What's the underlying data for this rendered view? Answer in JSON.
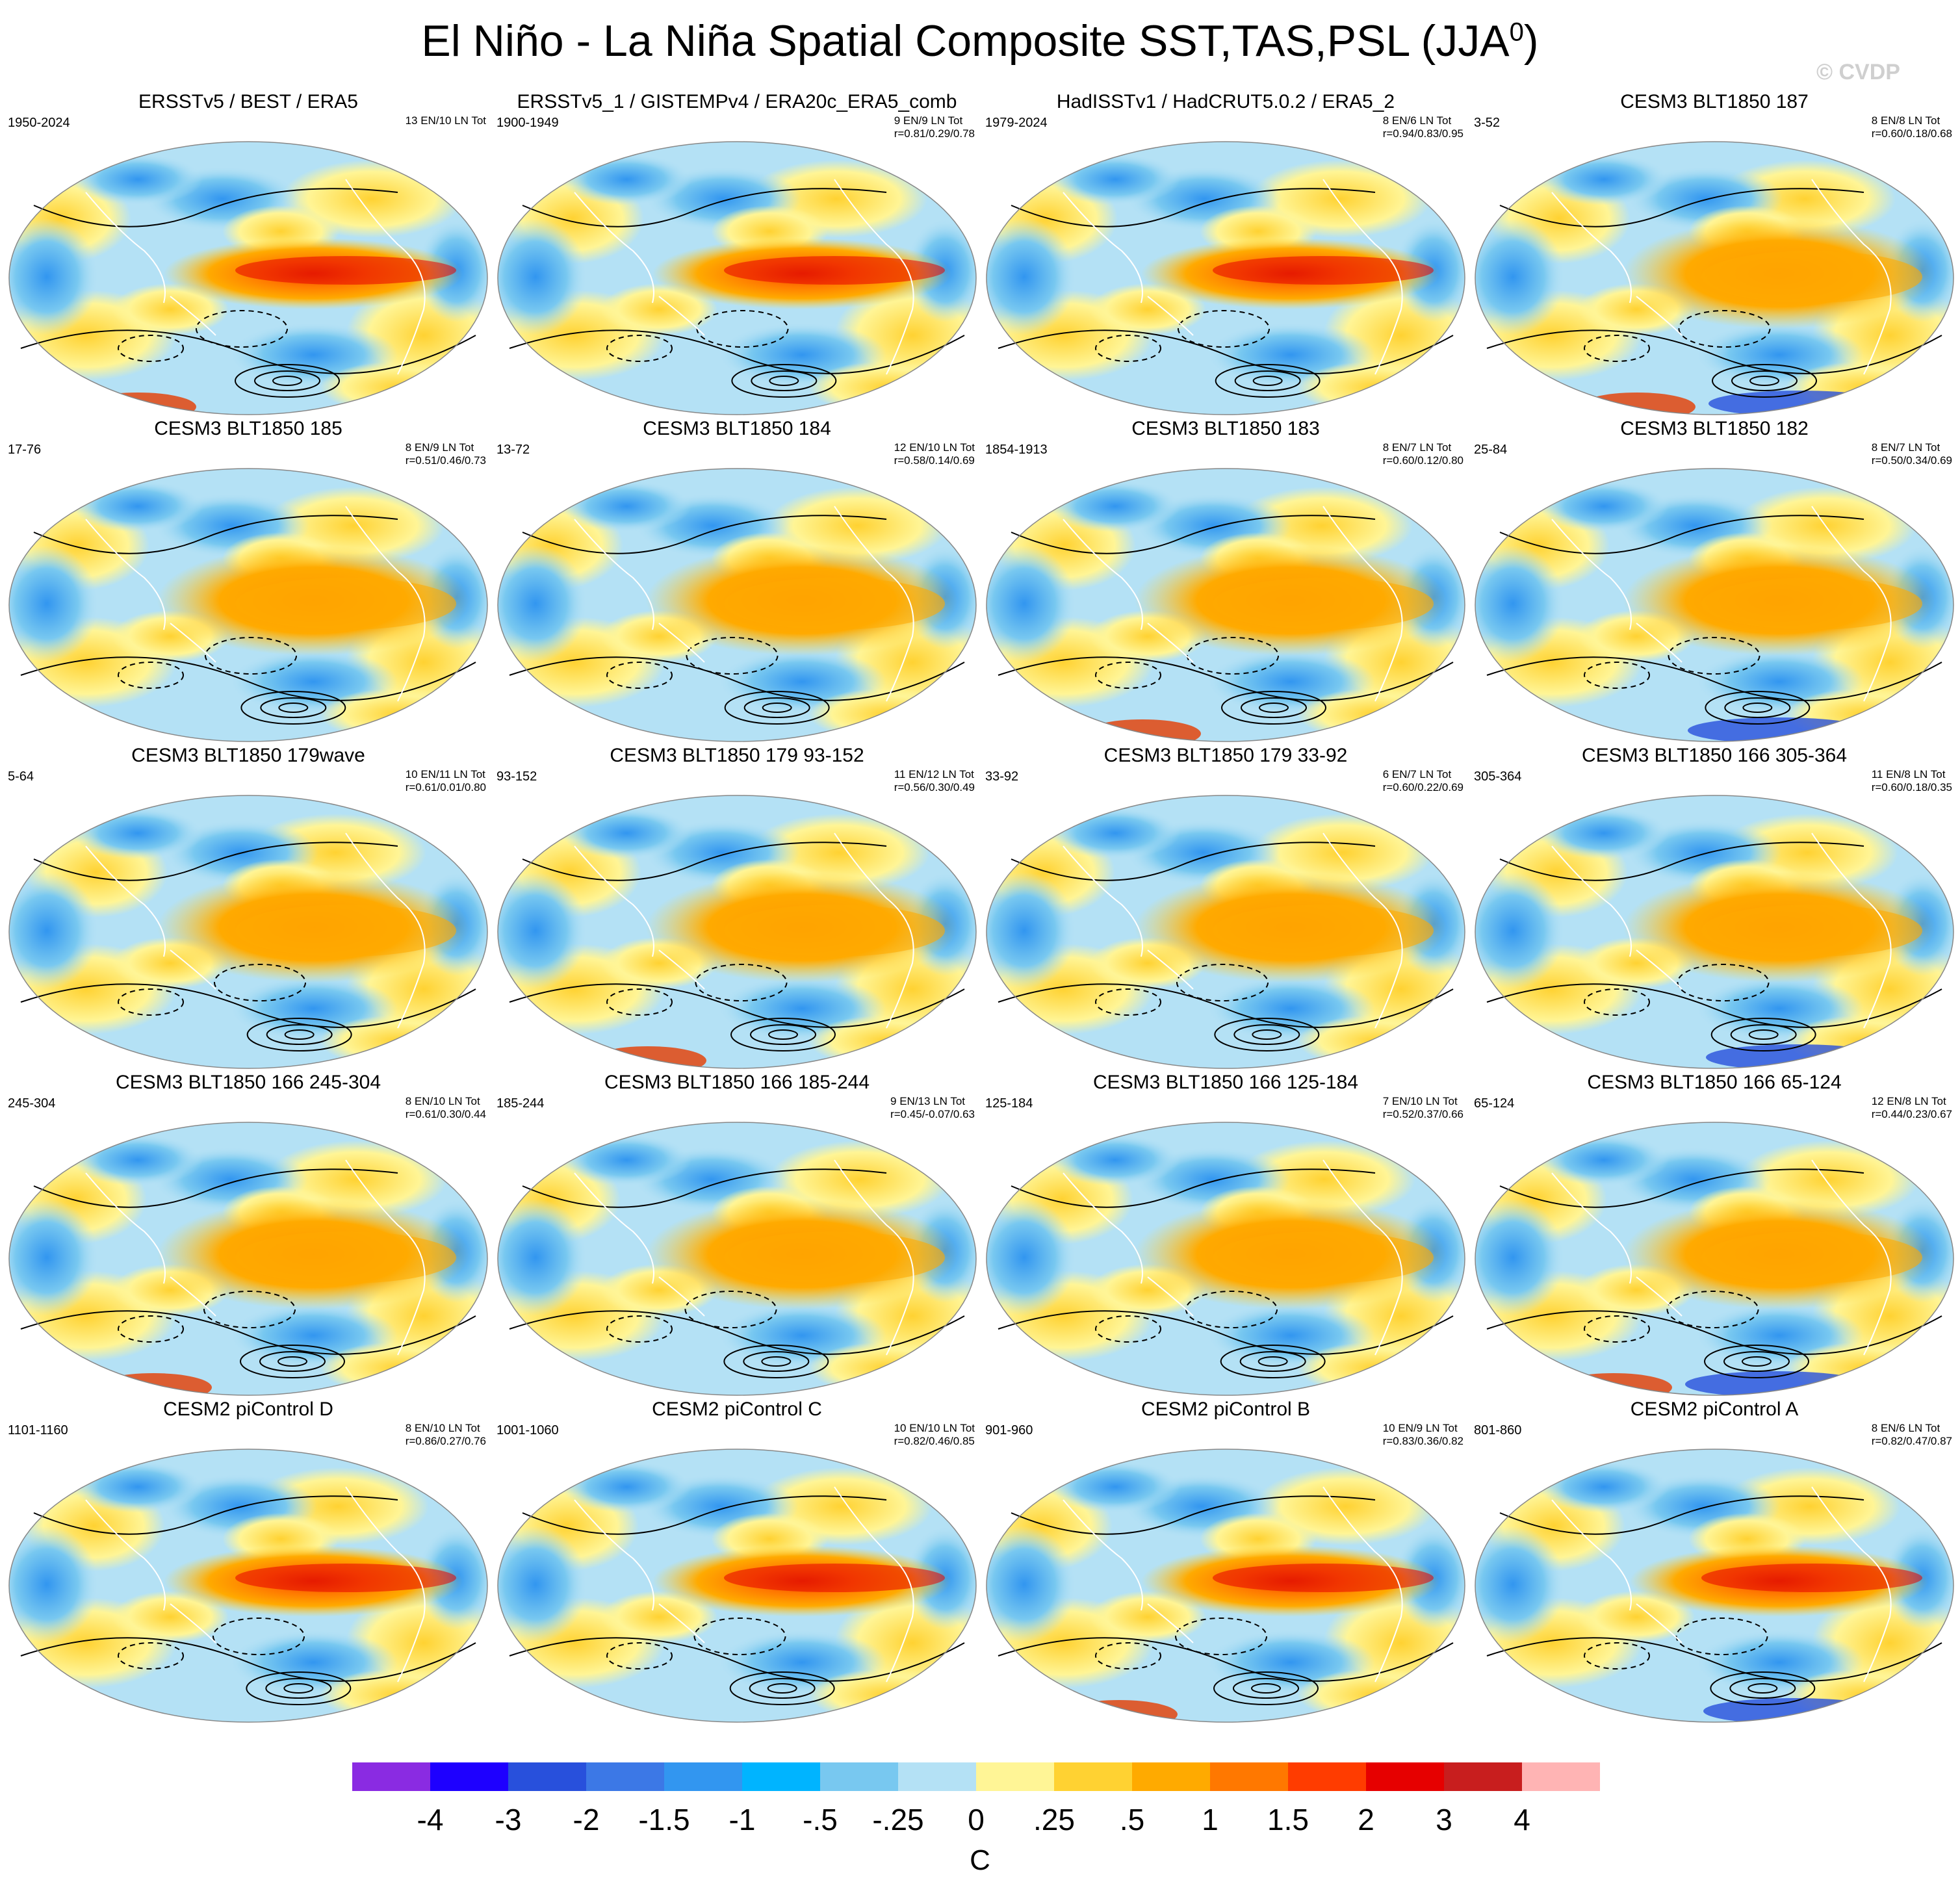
{
  "title": "El Niño - La Niña Spatial Composite SST,TAS,PSL (JJA",
  "title_superscript": "0",
  "title_close": ")",
  "watermark": "© CVDP",
  "panels": [
    {
      "title": "ERSSTv5 / BEST / ERA5",
      "years": "1950-2024",
      "counts": "13 EN/10 LN Tot",
      "corr": "",
      "style": "obs1"
    },
    {
      "title": "ERSSTv5_1 / GISTEMPv4 / ERA20c_ERA5_comb",
      "years": "1900-1949",
      "counts": "9 EN/9 LN Tot",
      "corr": "r=0.81/0.29/0.78",
      "style": "obs2"
    },
    {
      "title": "HadISSTv1 / HadCRUT5.0.2 / ERA5_2",
      "years": "1979-2024",
      "counts": "8 EN/6 LN Tot",
      "corr": "r=0.94/0.83/0.95",
      "style": "obs1"
    },
    {
      "title": "CESM3 BLT1850 187",
      "years": "3-52",
      "counts": "8 EN/8 LN Tot",
      "corr": "r=0.60/0.18/0.68",
      "style": "model"
    },
    {
      "title": "CESM3 BLT1850 185",
      "years": "17-76",
      "counts": "8 EN/9 LN Tot",
      "corr": "r=0.51/0.46/0.73",
      "style": "model"
    },
    {
      "title": "CESM3 BLT1850 184",
      "years": "13-72",
      "counts": "12 EN/10 LN Tot",
      "corr": "r=0.58/0.14/0.69",
      "style": "model"
    },
    {
      "title": "CESM3 BLT1850 183",
      "years": "1854-1913",
      "counts": "8 EN/7 LN Tot",
      "corr": "r=0.60/0.12/0.80",
      "style": "model"
    },
    {
      "title": "CESM3 BLT1850 182",
      "years": "25-84",
      "counts": "8 EN/7 LN Tot",
      "corr": "r=0.50/0.34/0.69",
      "style": "model"
    },
    {
      "title": "CESM3 BLT1850 179wave",
      "years": "5-64",
      "counts": "10 EN/11 LN Tot",
      "corr": "r=0.61/0.01/0.80",
      "style": "model"
    },
    {
      "title": "CESM3 BLT1850 179 93-152",
      "years": "93-152",
      "counts": "11 EN/12 LN Tot",
      "corr": "r=0.56/0.30/0.49",
      "style": "model"
    },
    {
      "title": "CESM3 BLT1850 179 33-92",
      "years": "33-92",
      "counts": "6 EN/7 LN Tot",
      "corr": "r=0.60/0.22/0.69",
      "style": "model"
    },
    {
      "title": "CESM3 BLT1850 166 305-364",
      "years": "305-364",
      "counts": "11 EN/8 LN Tot",
      "corr": "r=0.60/0.18/0.35",
      "style": "model"
    },
    {
      "title": "CESM3 BLT1850 166 245-304",
      "years": "245-304",
      "counts": "8 EN/10 LN Tot",
      "corr": "r=0.61/0.30/0.44",
      "style": "model"
    },
    {
      "title": "CESM3 BLT1850 166 185-244",
      "years": "185-244",
      "counts": "9 EN/13 LN Tot",
      "corr": "r=0.45/-0.07/0.63",
      "style": "model"
    },
    {
      "title": "CESM3 BLT1850 166 125-184",
      "years": "125-184",
      "counts": "7 EN/10 LN Tot",
      "corr": "r=0.52/0.37/0.66",
      "style": "model"
    },
    {
      "title": "CESM3 BLT1850 166 65-124",
      "years": "65-124",
      "counts": "12 EN/8 LN Tot",
      "corr": "r=0.44/0.23/0.67",
      "style": "model"
    },
    {
      "title": "CESM2 piControl D",
      "years": "1101-1160",
      "counts": "8 EN/10 LN Tot",
      "corr": "r=0.86/0.27/0.76",
      "style": "strong"
    },
    {
      "title": "CESM2 piControl C",
      "years": "1001-1060",
      "counts": "10 EN/10 LN Tot",
      "corr": "r=0.82/0.46/0.85",
      "style": "strong"
    },
    {
      "title": "CESM2 piControl B",
      "years": "901-960",
      "counts": "10 EN/9 LN Tot",
      "corr": "r=0.83/0.36/0.82",
      "style": "strong"
    },
    {
      "title": "CESM2 piControl A",
      "years": "801-860",
      "counts": "8 EN/6 LN Tot",
      "corr": "r=0.82/0.47/0.87",
      "style": "strong"
    }
  ],
  "chart_data": {
    "type": "heatmap",
    "description_title": "El Niño - La Niña Spatial Composite SST,TAS,PSL (JJA0)",
    "colorbar": {
      "unit": "C",
      "tick_labels": [
        "-4",
        "-3",
        "-2",
        "-1.5",
        "-1",
        "-.5",
        "-.25",
        "0",
        ".25",
        ".5",
        "1",
        "1.5",
        "2",
        "3",
        "4"
      ],
      "colors": [
        "#8a2be2",
        "#1e00ff",
        "#2850dc",
        "#3c78e6",
        "#3296f0",
        "#00b4ff",
        "#78c8f0",
        "#b4e1f5",
        "#fff596",
        "#ffd232",
        "#ffaa00",
        "#ff7800",
        "#ff3c00",
        "#e60000",
        "#c81e1e",
        "#ffb4b4"
      ]
    }
  }
}
